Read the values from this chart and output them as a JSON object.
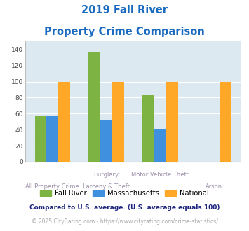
{
  "title_line1": "2019 Fall River",
  "title_line2": "Property Crime Comparison",
  "title_color": "#1a6bbf",
  "cat_labels_top": [
    "",
    "Burglary",
    "Motor Vehicle Theft",
    ""
  ],
  "cat_labels_bot": [
    "All Property Crime",
    "Larceny & Theft",
    "",
    "Arson"
  ],
  "fall_river": [
    58,
    136,
    83,
    0
  ],
  "massachusetts": [
    57,
    52,
    41,
    0
  ],
  "national": [
    100,
    100,
    100,
    100
  ],
  "fall_river_color": "#7CB342",
  "massachusetts_color": "#4090E0",
  "national_color": "#FFA726",
  "ylim": [
    0,
    150
  ],
  "yticks": [
    0,
    20,
    40,
    60,
    80,
    100,
    120,
    140
  ],
  "legend_labels": [
    "Fall River",
    "Massachusetts",
    "National"
  ],
  "footnote1": "Compared to U.S. average. (U.S. average equals 100)",
  "footnote2": "© 2025 CityRating.com - https://www.cityrating.com/crime-statistics/",
  "footnote1_color": "#1a237e",
  "footnote2_color": "#aaaaaa",
  "plot_bg": "#dde9f0",
  "grid_color": "#ffffff",
  "bar_width": 0.22
}
